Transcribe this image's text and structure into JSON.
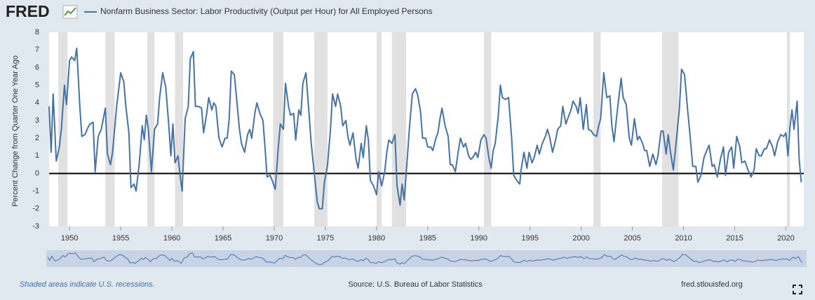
{
  "logo": "FRED",
  "chart_data": {
    "type": "line",
    "y_label": "Percent Change from Quarter One Year Ago",
    "x": [
      1948.0,
      1948.2,
      1948.4,
      1948.7,
      1949.0,
      1949.2,
      1949.5,
      1949.7,
      1950.0,
      1950.2,
      1950.5,
      1950.7,
      1951.0,
      1951.2,
      1951.5,
      1951.8,
      1952.0,
      1952.3,
      1952.5,
      1952.8,
      1953.1,
      1953.5,
      1953.7,
      1954.0,
      1954.2,
      1954.6,
      1955.0,
      1955.3,
      1955.5,
      1955.8,
      1956.0,
      1956.3,
      1956.5,
      1956.8,
      1957.1,
      1957.3,
      1957.5,
      1957.7,
      1958.0,
      1958.3,
      1958.6,
      1958.8,
      1959.1,
      1959.4,
      1959.7,
      1959.9,
      1960.1,
      1960.3,
      1960.6,
      1960.8,
      1961.0,
      1961.3,
      1961.6,
      1961.8,
      1962.1,
      1962.3,
      1962.6,
      1962.9,
      1963.1,
      1963.4,
      1963.6,
      1963.9,
      1964.1,
      1964.3,
      1964.6,
      1964.9,
      1965.2,
      1965.4,
      1965.6,
      1965.8,
      1966.1,
      1966.3,
      1966.6,
      1966.8,
      1967.1,
      1967.4,
      1967.6,
      1967.8,
      1968.1,
      1968.3,
      1968.6,
      1968.9,
      1969.1,
      1969.3,
      1969.6,
      1969.8,
      1970.1,
      1970.4,
      1970.6,
      1970.9,
      1971.1,
      1971.4,
      1971.6,
      1971.9,
      1972.1,
      1972.4,
      1972.6,
      1972.8,
      1973.1,
      1973.4,
      1973.6,
      1973.9,
      1974.2,
      1974.4,
      1974.7,
      1974.9,
      1975.2,
      1975.5,
      1975.7,
      1976.0,
      1976.2,
      1976.5,
      1976.7,
      1977.0,
      1977.2,
      1977.4,
      1977.7,
      1978.0,
      1978.2,
      1978.5,
      1978.7,
      1979.0,
      1979.2,
      1979.4,
      1979.7,
      1980.0,
      1980.2,
      1980.5,
      1980.8,
      1981.0,
      1981.2,
      1981.5,
      1981.8,
      1982.0,
      1982.3,
      1982.5,
      1982.7,
      1983.0,
      1983.2,
      1983.5,
      1983.8,
      1984.0,
      1984.3,
      1984.5,
      1984.8,
      1985.0,
      1985.3,
      1985.5,
      1985.8,
      1986.0,
      1986.2,
      1986.4,
      1986.7,
      1987.0,
      1987.2,
      1987.4,
      1987.7,
      1988.0,
      1988.2,
      1988.5,
      1988.7,
      1989.0,
      1989.2,
      1989.4,
      1989.7,
      1989.9,
      1990.2,
      1990.5,
      1990.7,
      1991.0,
      1991.2,
      1991.4,
      1991.6,
      1991.9,
      1992.1,
      1992.3,
      1992.6,
      1992.9,
      1993.2,
      1993.4,
      1993.7,
      1994.0,
      1994.1,
      1994.4,
      1994.7,
      1994.9,
      1995.2,
      1995.4,
      1995.7,
      1995.9,
      1996.2,
      1996.5,
      1996.7,
      1996.9,
      1997.2,
      1997.5,
      1997.7,
      1998.0,
      1998.2,
      1998.5,
      1998.8,
      1999.0,
      1999.2,
      1999.5,
      1999.7,
      1999.9,
      2000.2,
      2000.5,
      2000.7,
      2001.0,
      2001.2,
      2001.5,
      2001.7,
      2001.9,
      2002.2,
      2002.5,
      2002.8,
      2003.0,
      2003.2,
      2003.5,
      2003.9,
      2004.1,
      2004.4,
      2004.7,
      2004.9,
      2005.2,
      2005.5,
      2005.7,
      2006.0,
      2006.2,
      2006.4,
      2006.7,
      2007.0,
      2007.3,
      2007.5,
      2007.8,
      2008.0,
      2008.3,
      2008.5,
      2008.7,
      2009.0,
      2009.3,
      2009.6,
      2009.8,
      2010.1,
      2010.4,
      2010.6,
      2010.9,
      2011.2,
      2011.4,
      2011.7,
      2012.0,
      2012.2,
      2012.5,
      2012.8,
      2013.0,
      2013.3,
      2013.6,
      2013.9,
      2014.1,
      2014.4,
      2014.7,
      2014.9,
      2015.2,
      2015.5,
      2015.7,
      2016.0,
      2016.3,
      2016.6,
      2016.9,
      2017.1,
      2017.4,
      2017.6,
      2017.9,
      2018.1,
      2018.4,
      2018.7,
      2018.9,
      2019.2,
      2019.5,
      2019.8,
      2020.0,
      2020.2,
      2020.4,
      2020.6,
      2020.8,
      2021.1,
      2021.3,
      2021.5
    ],
    "series": [
      {
        "name": "Nonfarm Business Sector: Labor Productivity (Output per Hour) for All Employed Persons",
        "color": "#4572a7",
        "values": [
          3.8,
          1.2,
          4.5,
          0.7,
          1.5,
          2.5,
          5.0,
          3.9,
          6.4,
          6.6,
          6.4,
          7.1,
          3.8,
          2.1,
          2.2,
          2.6,
          2.8,
          2.9,
          0.1,
          2.1,
          2.5,
          3.7,
          1.1,
          0.5,
          1.2,
          3.8,
          5.7,
          5.2,
          3.8,
          2.3,
          -0.8,
          -0.6,
          -1.0,
          0.5,
          2.7,
          1.9,
          3.3,
          2.5,
          0.1,
          2.5,
          2.8,
          4.3,
          5.7,
          4.9,
          2.7,
          1.0,
          2.8,
          0.6,
          1.0,
          -0.1,
          -1.0,
          3.1,
          3.8,
          6.5,
          6.9,
          3.8,
          3.8,
          3.7,
          2.3,
          3.4,
          4.3,
          3.6,
          4.0,
          3.8,
          2.0,
          1.5,
          2.0,
          2.0,
          3.1,
          5.8,
          5.6,
          4.4,
          2.5,
          1.7,
          1.2,
          2.2,
          2.5,
          2.0,
          3.4,
          4.0,
          3.4,
          3.0,
          1.5,
          -0.2,
          -0.1,
          -0.4,
          -0.9,
          1.5,
          2.8,
          2.5,
          5.1,
          3.8,
          3.3,
          3.4,
          1.9,
          3.6,
          3.3,
          5.1,
          5.7,
          3.4,
          1.8,
          0.1,
          -1.6,
          -2.0,
          -2.0,
          -0.5,
          0.4,
          2.5,
          4.5,
          3.8,
          4.5,
          3.8,
          2.7,
          3.0,
          2.1,
          1.6,
          2.3,
          0.8,
          0.3,
          1.7,
          0.9,
          2.7,
          1.9,
          -0.4,
          -0.7,
          -1.2,
          0.1,
          -0.7,
          0.1,
          1.2,
          1.9,
          1.7,
          2.2,
          -0.7,
          -1.8,
          -0.6,
          -1.5,
          0.8,
          2.5,
          4.5,
          4.8,
          4.5,
          3.5,
          2.0,
          2.0,
          1.5,
          1.5,
          1.3,
          2.0,
          2.3,
          3.1,
          3.7,
          2.7,
          2.1,
          0.5,
          0.5,
          0.1,
          1.3,
          2.0,
          1.5,
          1.7,
          1.0,
          0.8,
          0.9,
          1.2,
          0.9,
          1.9,
          2.2,
          2.0,
          0.8,
          0.3,
          1.3,
          1.7,
          3.3,
          5.0,
          4.3,
          4.2,
          4.3,
          2.0,
          -0.1,
          -0.4,
          -0.6,
          0.1,
          1.2,
          0.3,
          1.2,
          0.6,
          0.9,
          1.6,
          1.1,
          1.7,
          2.1,
          2.5,
          2.1,
          1.2,
          1.9,
          2.5,
          2.7,
          3.8,
          2.8,
          3.3,
          3.6,
          4.1,
          3.8,
          3.4,
          4.3,
          2.5,
          3.9,
          2.5,
          2.4,
          2.2,
          2.1,
          2.7,
          3.1,
          5.7,
          4.3,
          4.4,
          2.7,
          1.8,
          3.4,
          5.4,
          4.3,
          3.9,
          2.0,
          1.6,
          3.1,
          1.9,
          2.1,
          1.7,
          1.3,
          1.3,
          0.4,
          1.1,
          0.5,
          1.0,
          2.4,
          2.4,
          1.1,
          2.2,
          1.3,
          0.2,
          1.9,
          3.7,
          5.9,
          5.6,
          3.6,
          2.4,
          0.4,
          0.4,
          -0.5,
          -0.1,
          0.9,
          1.2,
          1.6,
          0.4,
          0.5,
          -0.2,
          0.8,
          1.5,
          -0.1,
          1.2,
          1.5,
          0.3,
          2.1,
          1.5,
          0.6,
          0.7,
          0.2,
          -0.2,
          0.2,
          1.4,
          1.0,
          1.0,
          1.4,
          1.4,
          1.9,
          1.5,
          1.0,
          1.8,
          2.2,
          2.1,
          2.3,
          1.0,
          2.6,
          3.6,
          2.5,
          4.1,
          0.8,
          -0.5
        ]
      }
    ],
    "recessions": [
      [
        1948.9,
        1949.8
      ],
      [
        1953.5,
        1954.4
      ],
      [
        1957.6,
        1958.3
      ],
      [
        1960.3,
        1961.1
      ],
      [
        1969.9,
        1970.9
      ],
      [
        1973.9,
        1975.2
      ],
      [
        1980.0,
        1980.5
      ],
      [
        1981.5,
        1982.9
      ],
      [
        1990.5,
        1991.2
      ],
      [
        2001.2,
        2001.9
      ],
      [
        2007.9,
        2009.5
      ],
      [
        2020.1,
        2020.4
      ]
    ],
    "xlim": [
      1948,
      2021.75
    ],
    "xticks": [
      1950,
      1955,
      1960,
      1965,
      1970,
      1975,
      1980,
      1985,
      1990,
      1995,
      2000,
      2005,
      2010,
      2015,
      2020
    ],
    "ylim": [
      -3,
      8
    ],
    "yticks": [
      -3,
      -2,
      -1,
      0,
      1,
      2,
      3,
      4,
      5,
      6,
      7,
      8
    ],
    "recession_note": "Shaded areas indicate U.S. recessions.",
    "source": "Source: U.S. Bureau of Labor Statistics",
    "site": "fred.stlouisfed.org"
  }
}
